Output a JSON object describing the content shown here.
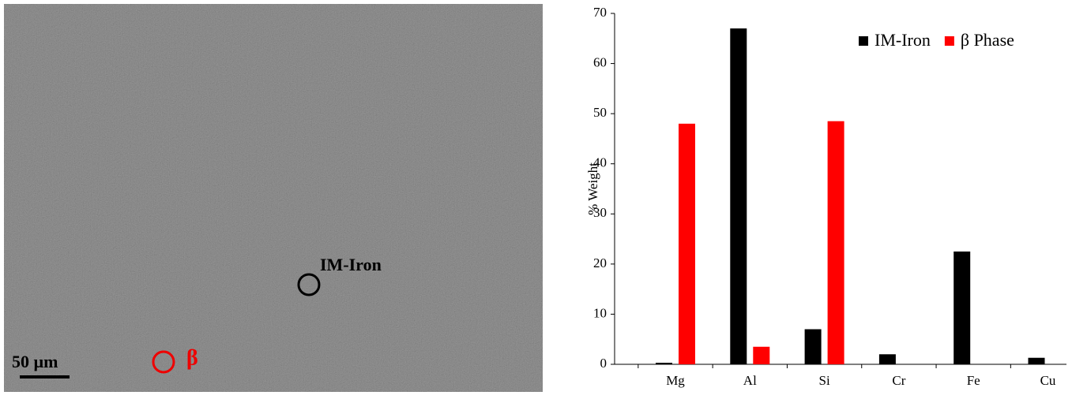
{
  "image_labels": {
    "im_iron": "IM-Iron",
    "beta": "β",
    "scale": "50 µm"
  },
  "chart_data": {
    "type": "bar",
    "categories": [
      "Mg",
      "Al",
      "Si",
      "Cr",
      "Fe",
      "Cu"
    ],
    "series": [
      {
        "name": "IM-Iron",
        "color": "#000000",
        "values": [
          0.3,
          67,
          7,
          2,
          22.5,
          1.3
        ]
      },
      {
        "name": "β Phase",
        "color": "#ff0000",
        "values": [
          48,
          3.5,
          48.5,
          0,
          0,
          0
        ]
      }
    ],
    "ylabel": "% Weight",
    "ylim": [
      0,
      70
    ],
    "yticks": [
      0,
      10,
      20,
      30,
      40,
      50,
      60,
      70
    ],
    "legend": "upper-right"
  }
}
